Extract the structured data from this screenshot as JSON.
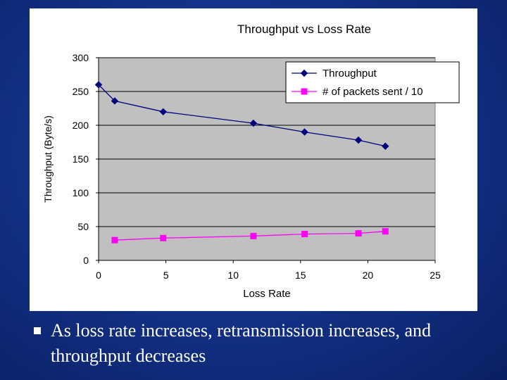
{
  "chart_data": {
    "type": "line",
    "title": "Throughput vs Loss Rate",
    "xlabel": "Loss Rate",
    "ylabel": "Throughput (Byte/s)",
    "xlim": [
      0,
      25
    ],
    "ylim": [
      0,
      300
    ],
    "x_ticks": [
      "0",
      "5",
      "10",
      "15",
      "20",
      "25"
    ],
    "y_ticks": [
      "0",
      "50",
      "100",
      "150",
      "200",
      "250",
      "300"
    ],
    "grid": "horizontal",
    "plot_background": "#c0c0c0",
    "legend_position": "top-right",
    "series": [
      {
        "name": "Throughput",
        "color": "#000080",
        "marker": "diamond",
        "points": [
          [
            0,
            260
          ],
          [
            1.2,
            236
          ],
          [
            4.8,
            220
          ],
          [
            11.5,
            203
          ],
          [
            15.3,
            190
          ],
          [
            19.3,
            178
          ],
          [
            21.3,
            169
          ]
        ]
      },
      {
        "name": "# of packets sent / 10",
        "color": "#ff00ff",
        "marker": "square",
        "points": [
          [
            1.2,
            30
          ],
          [
            4.8,
            33
          ],
          [
            11.5,
            36
          ],
          [
            15.3,
            39
          ],
          [
            19.3,
            40
          ],
          [
            21.3,
            43
          ]
        ]
      }
    ]
  },
  "bullet": {
    "text": "As loss rate increases, retransmission increases, and throughput decreases"
  }
}
